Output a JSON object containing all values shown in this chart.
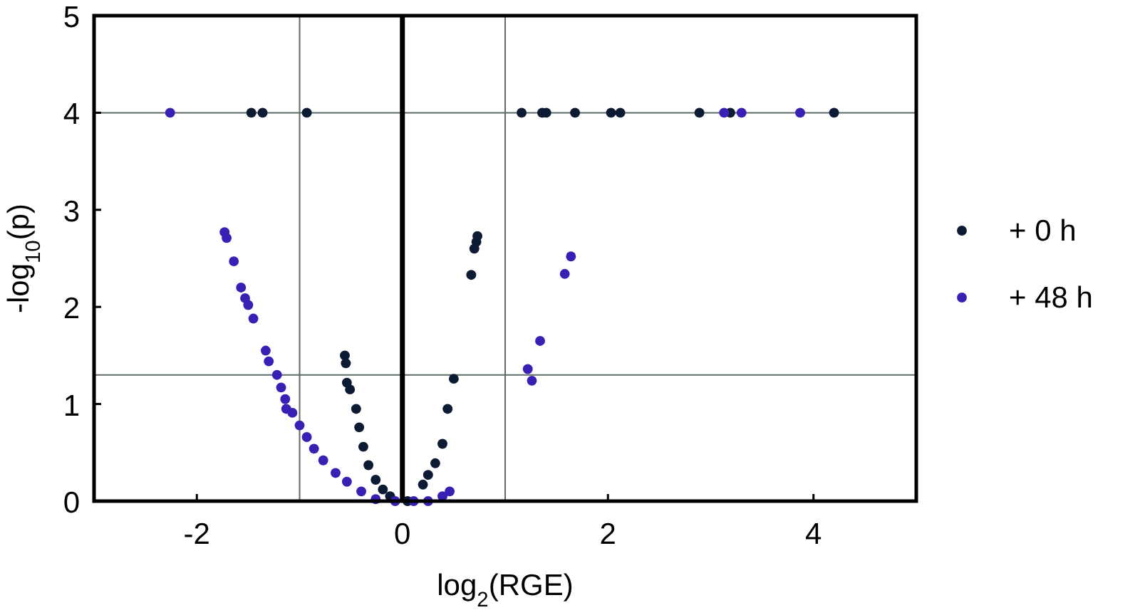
{
  "chart_data": {
    "type": "scatter",
    "xlabel": "log$_{2}$(RGE)",
    "ylabel": "-log$_{10}$(p)",
    "xlim": [
      -3,
      5
    ],
    "ylim": [
      0,
      5
    ],
    "xticks": [
      -2,
      0,
      2,
      4
    ],
    "yticks": [
      0,
      1,
      2,
      3,
      4,
      5
    ],
    "legend": "right",
    "marker": "circle",
    "grid": false,
    "ref_lines": [
      {
        "axis": "x",
        "value": -1,
        "color": "#5f6b68"
      },
      {
        "axis": "x",
        "value": 1,
        "color": "#5f6b68"
      },
      {
        "axis": "y",
        "value": 1.3,
        "color": "#5f6b68"
      },
      {
        "axis": "y",
        "value": 4,
        "color": "#5f6b68"
      },
      {
        "axis": "x",
        "value": 0,
        "color": "#000000"
      }
    ],
    "series": [
      {
        "name": "+ 0 h",
        "color": "#0d1a33",
        "x": [
          -1.47,
          -1.36,
          -0.93,
          1.16,
          1.36,
          1.4,
          1.68,
          2.03,
          2.12,
          2.89,
          3.19,
          4.2,
          -0.56,
          -0.55,
          -0.54,
          -0.51,
          -0.45,
          -0.42,
          -0.38,
          -0.33,
          -0.26,
          -0.19,
          -0.12,
          0.05,
          0.2,
          0.25,
          0.32,
          0.39,
          0.44,
          0.5,
          0.67,
          0.7,
          0.72,
          0.73
        ],
        "values": [
          4,
          4,
          4,
          4,
          4,
          4,
          4,
          4,
          4,
          4,
          4,
          4,
          1.5,
          1.42,
          1.22,
          1.15,
          0.95,
          0.76,
          0.56,
          0.37,
          0.22,
          0.12,
          0.05,
          0,
          0.17,
          0.27,
          0.39,
          0.59,
          0.95,
          1.26,
          2.33,
          2.6,
          2.67,
          2.73
        ]
      },
      {
        "name": "+ 48 h",
        "color": "#3a1fb5",
        "x": [
          -2.26,
          3.13,
          3.3,
          3.87,
          -1.73,
          -1.71,
          -1.64,
          -1.57,
          -1.53,
          -1.5,
          -1.45,
          -1.33,
          -1.3,
          -1.22,
          -1.18,
          -1.14,
          -1.13,
          -1.07,
          -1,
          -0.93,
          -0.86,
          -0.77,
          -0.65,
          -0.54,
          -0.4,
          -0.26,
          -0.07,
          0.11,
          0.25,
          0.39,
          0.46,
          1.22,
          1.26,
          1.34,
          1.58,
          1.64
        ],
        "values": [
          4,
          4,
          4,
          4,
          2.77,
          2.71,
          2.47,
          2.2,
          2.09,
          2.02,
          1.88,
          1.55,
          1.44,
          1.3,
          1.17,
          1.05,
          0.95,
          0.91,
          0.78,
          0.66,
          0.54,
          0.42,
          0.29,
          0.2,
          0.1,
          0.02,
          0,
          0,
          0,
          0.05,
          0.1,
          1.36,
          1.24,
          1.65,
          2.34,
          2.52
        ]
      }
    ]
  }
}
